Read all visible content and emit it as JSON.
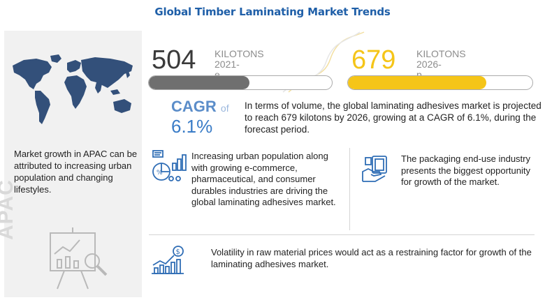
{
  "title": "Global Timber Laminating  Market Trends",
  "stats": {
    "current": {
      "value": "504",
      "unit": "KILOTONS",
      "year": "2021-e",
      "fill_fraction": 0.55,
      "color": "#6f6f6f"
    },
    "forecast": {
      "value": "679",
      "unit": "KILOTONS",
      "year": "2026-p",
      "fill_fraction": 0.75,
      "color": "#f5c518"
    }
  },
  "cagr": {
    "label": "CAGR",
    "of": "of",
    "value": "6.1%"
  },
  "summary": "In terms of volume, the global laminating adhesives market is projected to reach 679 kilotons by 2026, growing at a CAGR of 6.1%, during the forecast period.",
  "apac_text": "Market growth in APAC can be attributed to increasing urban population and changing lifestyles.",
  "apac_label": "APAC",
  "driver": "Increasing urban population along with growing e-commerce, pharmaceutical, and consumer durables industries are driving the global laminating adhesives market.",
  "opportunity": "The packaging end-use industry presents the biggest opportunity for growth of the market.",
  "restraint": "Volatility in raw material prices would act as a restraining factor for growth of the laminating adhesives market.",
  "icons": {
    "world_map": "world-map-icon",
    "board": "analytics-board-icon",
    "driver": "population-chart-icon",
    "opportunity": "packaging-icon",
    "restraint": "growth-chart-dollar-icon"
  },
  "colors": {
    "title": "#1f5fa8",
    "accent_blue": "#3a7cc7",
    "accent_yellow": "#f5c518",
    "grey_bar": "#6f6f6f",
    "panel_bg": "#f1f1f1"
  }
}
